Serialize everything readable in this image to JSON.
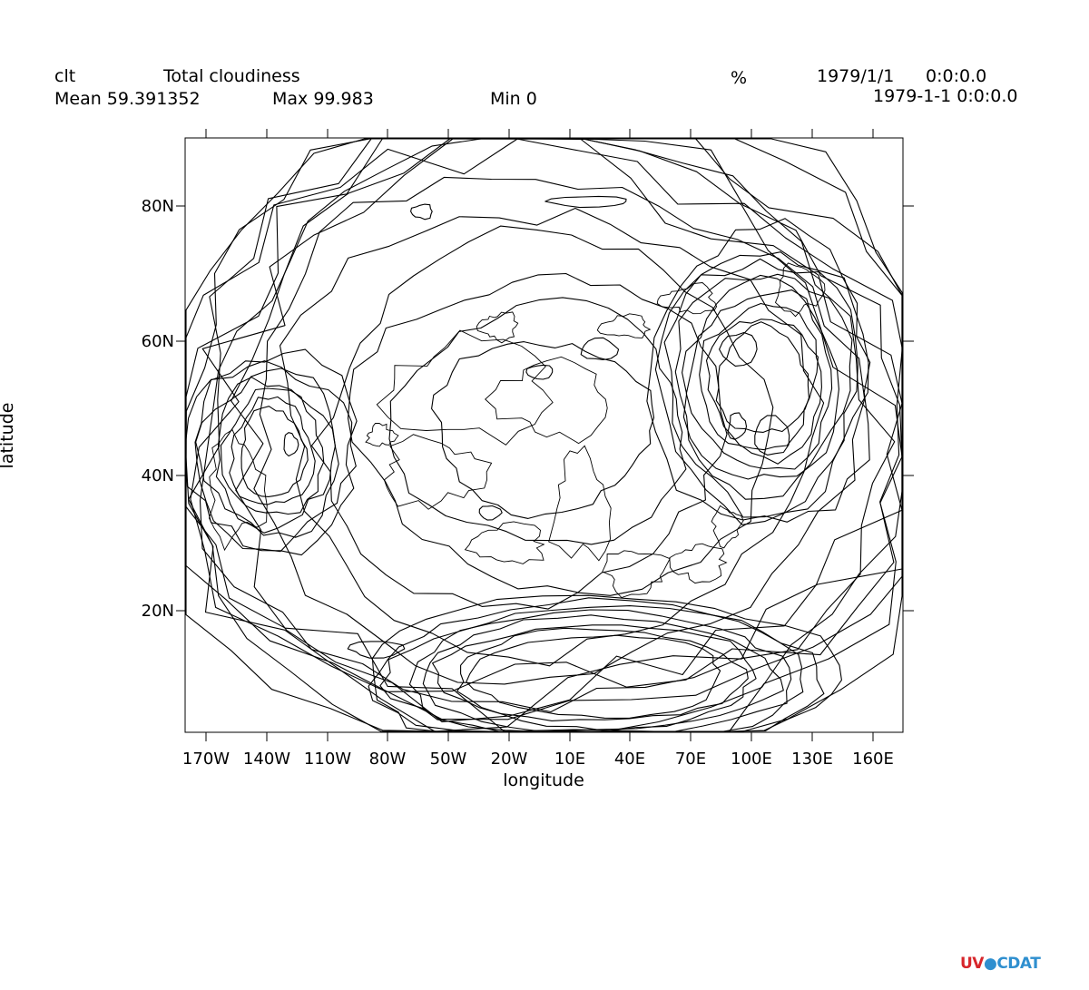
{
  "header": {
    "var_name": "clt",
    "long_name": "Total cloudiness",
    "units": "%",
    "date": "1979/1/1",
    "time": "0:0:0.0",
    "mean": "Mean 59.391352",
    "max": "Max 99.983",
    "min": "Min 0",
    "timestamp": "1979-1-1 0:0:0.0"
  },
  "chart_data": {
    "type": "contour",
    "projection": "polar stereographic (northern hemisphere)",
    "variable": "clt",
    "mean": 59.391352,
    "max": 99.983,
    "min": 0,
    "x_ticks": [
      "170W",
      "140W",
      "110W",
      "80W",
      "50W",
      "20W",
      "10E",
      "40E",
      "70E",
      "100E",
      "130E",
      "160E"
    ],
    "y_ticks": [
      "80N",
      "60N",
      "40N",
      "20N"
    ],
    "xlabel": "longitude",
    "ylabel": "latitude",
    "grid": false,
    "contour_color": "#000000"
  },
  "logo": {
    "part1": "UV",
    "part2": "CDAT",
    "part1_color": "#d7262b",
    "part2_color": "#2f8fcf"
  }
}
